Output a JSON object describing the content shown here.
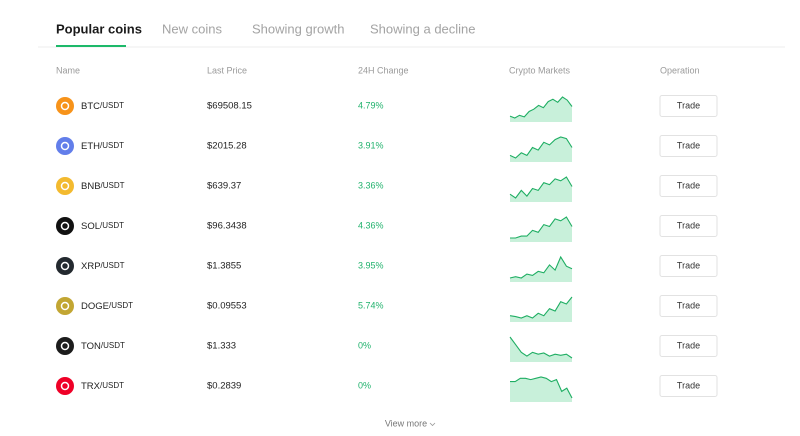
{
  "tabs": [
    "Popular coins",
    "New coins",
    "Showing growth",
    "Showing a decline"
  ],
  "columns": [
    "Name",
    "Last Price",
    "24H Change",
    "Crypto Markets",
    "Operation"
  ],
  "rows": [
    {
      "base": "BTC",
      "quote": "/USDT",
      "price": "$69508.15",
      "change": "4.79%",
      "button": "Trade",
      "color": "#f7931a",
      "spark": [
        30,
        25,
        32,
        28,
        42,
        48,
        58,
        52,
        68,
        74,
        66,
        80,
        72,
        55
      ]
    },
    {
      "base": "ETH",
      "quote": "/USDT",
      "price": "$2015.28",
      "change": "3.91%",
      "button": "Trade",
      "color": "#627eea",
      "spark": [
        40,
        35,
        45,
        40,
        55,
        50,
        65,
        60,
        70,
        75,
        72,
        55
      ]
    },
    {
      "base": "BNB",
      "quote": "/USDT",
      "price": "$639.37",
      "change": "3.36%",
      "button": "Trade",
      "color": "#f3ba2f",
      "spark": [
        40,
        30,
        50,
        35,
        55,
        50,
        70,
        65,
        80,
        75,
        85,
        60
      ]
    },
    {
      "base": "SOL",
      "quote": "/USDT",
      "price": "$96.3438",
      "change": "4.36%",
      "button": "Trade",
      "color": "#111111",
      "spark": [
        20,
        20,
        25,
        25,
        40,
        35,
        55,
        50,
        70,
        65,
        75,
        50
      ]
    },
    {
      "base": "XRP",
      "quote": "/USDT",
      "price": "$1.3855",
      "change": "3.95%",
      "button": "Trade",
      "color": "#23292f",
      "spark": [
        10,
        15,
        10,
        25,
        20,
        35,
        30,
        60,
        40,
        90,
        55,
        45
      ]
    },
    {
      "base": "DOGE",
      "quote": "/USDT",
      "price": "$0.09553",
      "change": "5.74%",
      "button": "Trade",
      "color": "#c2a633",
      "spark": [
        20,
        18,
        15,
        20,
        15,
        25,
        20,
        35,
        30,
        50,
        45,
        60
      ]
    },
    {
      "base": "TON",
      "quote": "/USDT",
      "price": "$1.333",
      "change": "0%",
      "button": "Trade",
      "color": "#1c1c1c",
      "spark": [
        80,
        60,
        40,
        30,
        40,
        35,
        38,
        30,
        35,
        32,
        35,
        25
      ]
    },
    {
      "base": "TRX",
      "quote": "/USDT",
      "price": "$0.2839",
      "change": "0%",
      "button": "Trade",
      "color": "#ef0027",
      "spark": [
        55,
        55,
        60,
        60,
        58,
        60,
        62,
        60,
        55,
        58,
        40,
        45,
        30
      ]
    }
  ],
  "footer": "View more"
}
